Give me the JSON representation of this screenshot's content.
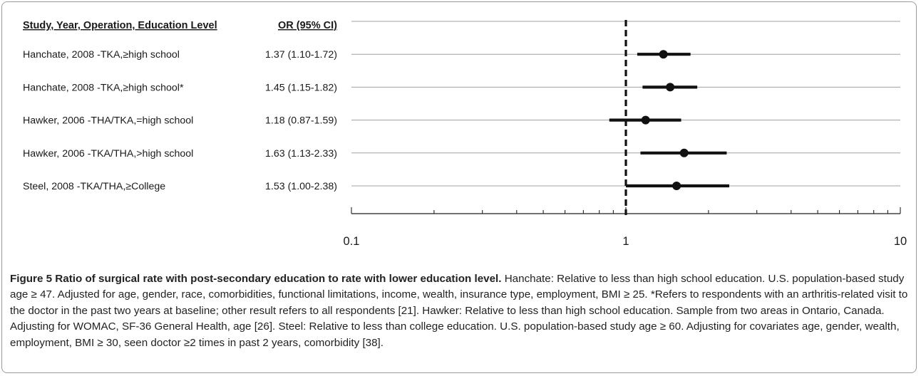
{
  "chart_data": {
    "type": "forest",
    "header_study": "Study, Year, Operation, Education Level",
    "header_or": "OR (95% CI)",
    "x_scale": "log",
    "xlim": [
      0.1,
      10
    ],
    "x_ticks": [
      "0.1",
      "1",
      "10"
    ],
    "reference_line": 1,
    "studies": [
      {
        "label": "Hanchate, 2008 -TKA,≥high school",
        "or_text": "1.37 (1.10-1.72)",
        "or": 1.37,
        "lo": 1.1,
        "hi": 1.72
      },
      {
        "label": "Hanchate, 2008 -TKA,≥high school*",
        "or_text": "1.45 (1.15-1.82)",
        "or": 1.45,
        "lo": 1.15,
        "hi": 1.82
      },
      {
        "label": "Hawker, 2006 -THA/TKA,=high school",
        "or_text": "1.18 (0.87-1.59)",
        "or": 1.18,
        "lo": 0.87,
        "hi": 1.59
      },
      {
        "label": "Hawker, 2006 -TKA/THA,>high school",
        "or_text": "1.63 (1.13-2.33)",
        "or": 1.63,
        "lo": 1.13,
        "hi": 2.33
      },
      {
        "label": "Steel, 2008 -TKA/THA,≥College",
        "or_text": "1.53 (1.00-2.38)",
        "or": 1.53,
        "lo": 1.0,
        "hi": 2.38
      }
    ]
  },
  "caption": {
    "title": "Figure 5 Ratio of surgical rate with post-secondary education to rate with lower education level.",
    "body": " Hanchate: Relative to less than high school education. U.S. population-based study age ≥ 47. Adjusted for age, gender, race, comorbidities, functional limitations, income, wealth, insurance type, employment, BMI ≥ 25. *Refers to respondents with an arthritis-related visit to the doctor in the past two years at baseline; other result refers to all respondents [21]. Hawker: Relative to less than high school education. Sample from two areas in Ontario, Canada. Adjusting for WOMAC, SF-36 General Health, age [26]. Steel: Relative to less than college education. U.S. population-based study age ≥ 60. Adjusting for covariates age, gender, wealth, employment, BMI ≥ 30, seen doctor ≥2 times in past 2 years, comorbidity [38]."
  }
}
